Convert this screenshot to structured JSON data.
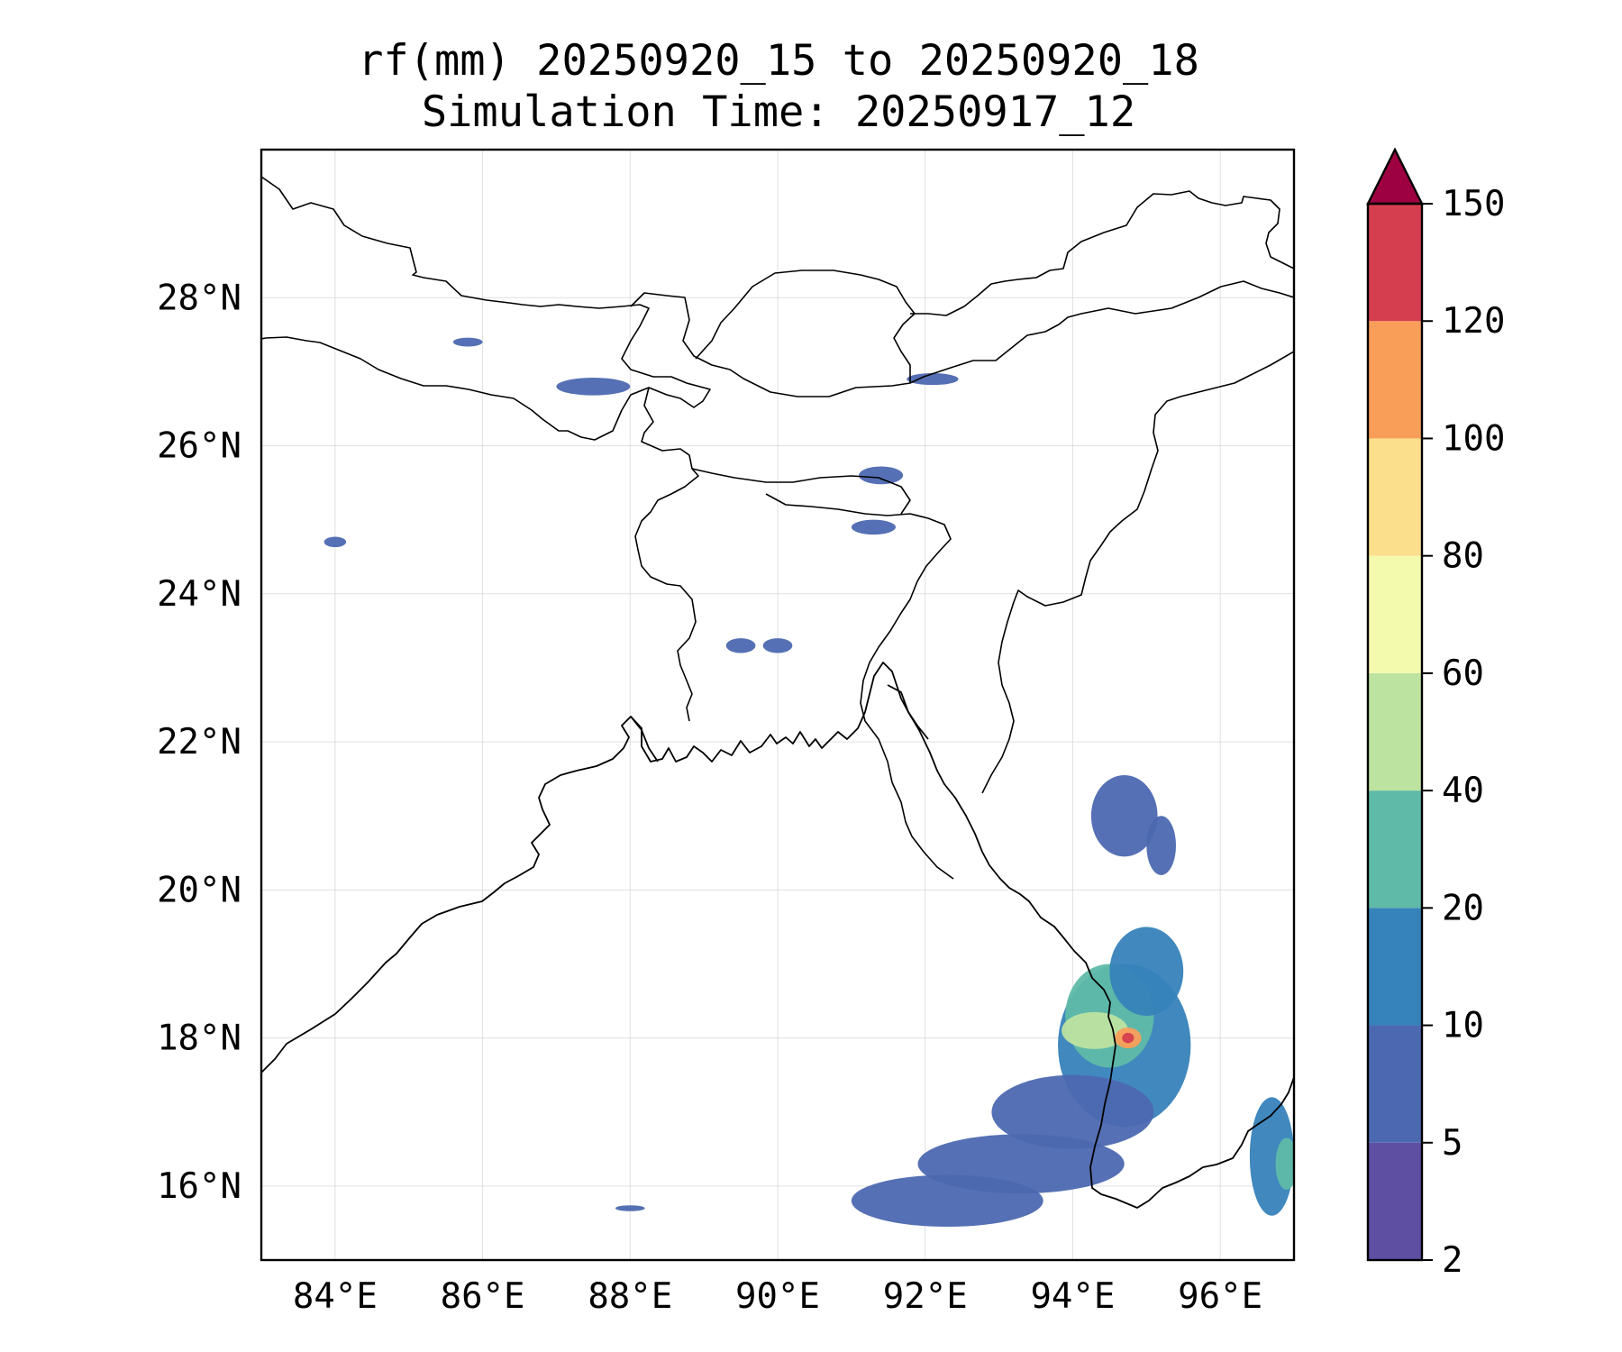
{
  "title_line1": "rf(mm) 20250920_15 to 20250920_18",
  "title_line2": "Simulation Time: 20250917_12",
  "map": {
    "lon_range": [
      83.0,
      97.0
    ],
    "lat_range": [
      15.0,
      30.0
    ],
    "lon_ticks": [
      84,
      86,
      88,
      90,
      92,
      94,
      96
    ],
    "lat_ticks": [
      16,
      18,
      20,
      22,
      24,
      26,
      28
    ],
    "lon_labels": [
      "84°E",
      "86°E",
      "88°E",
      "90°E",
      "92°E",
      "94°E",
      "96°E"
    ],
    "lat_labels": [
      "16°N",
      "18°N",
      "20°N",
      "22°N",
      "24°N",
      "26°N",
      "28°N"
    ],
    "gridlines": true
  },
  "colorbar": {
    "levels": [
      2,
      5,
      10,
      20,
      40,
      60,
      80,
      100,
      120,
      150
    ],
    "level_labels": [
      "2",
      "5",
      "10",
      "20",
      "40",
      "60",
      "80",
      "100",
      "120",
      "150"
    ],
    "colors": [
      "#5e4fa2",
      "#4c68b0",
      "#3682ba",
      "#5fbaa8",
      "#bde3a0",
      "#f3f9ad",
      "#fbdf8c",
      "#f99e59",
      "#d53e4f"
    ],
    "extend_color": "#9e0142",
    "extend": "max"
  },
  "rain_cells": [
    {
      "lon": 94.7,
      "lat": 17.9,
      "rx": 0.9,
      "ry": 1.1,
      "level": 2
    },
    {
      "lon": 94.5,
      "lat": 18.3,
      "rx": 0.6,
      "ry": 0.7,
      "level": 3
    },
    {
      "lon": 94.3,
      "lat": 18.1,
      "rx": 0.45,
      "ry": 0.25,
      "level": 4
    },
    {
      "lon": 94.75,
      "lat": 18.0,
      "rx": 0.18,
      "ry": 0.14,
      "level": 7
    },
    {
      "lon": 94.75,
      "lat": 18.0,
      "rx": 0.08,
      "ry": 0.07,
      "level": 8
    },
    {
      "lon": 95.0,
      "lat": 18.9,
      "rx": 0.5,
      "ry": 0.6,
      "level": 2
    },
    {
      "lon": 94.0,
      "lat": 17.0,
      "rx": 1.1,
      "ry": 0.5,
      "level": 1
    },
    {
      "lon": 93.3,
      "lat": 16.3,
      "rx": 1.4,
      "ry": 0.4,
      "level": 1
    },
    {
      "lon": 92.3,
      "lat": 15.8,
      "rx": 1.3,
      "ry": 0.35,
      "level": 1
    },
    {
      "lon": 94.7,
      "lat": 21.0,
      "rx": 0.45,
      "ry": 0.55,
      "level": 1
    },
    {
      "lon": 95.2,
      "lat": 20.6,
      "rx": 0.2,
      "ry": 0.4,
      "level": 1
    },
    {
      "lon": 96.7,
      "lat": 16.4,
      "rx": 0.3,
      "ry": 0.8,
      "level": 2
    },
    {
      "lon": 96.9,
      "lat": 16.3,
      "rx": 0.15,
      "ry": 0.35,
      "level": 3
    },
    {
      "lon": 87.5,
      "lat": 26.8,
      "rx": 0.5,
      "ry": 0.12,
      "level": 1
    },
    {
      "lon": 91.4,
      "lat": 25.6,
      "rx": 0.3,
      "ry": 0.12,
      "level": 1
    },
    {
      "lon": 91.3,
      "lat": 24.9,
      "rx": 0.3,
      "ry": 0.1,
      "level": 1
    },
    {
      "lon": 92.1,
      "lat": 26.9,
      "rx": 0.35,
      "ry": 0.08,
      "level": 1
    },
    {
      "lon": 84.0,
      "lat": 24.7,
      "rx": 0.15,
      "ry": 0.07,
      "level": 1
    },
    {
      "lon": 85.8,
      "lat": 27.4,
      "rx": 0.2,
      "ry": 0.06,
      "level": 1
    },
    {
      "lon": 89.5,
      "lat": 23.3,
      "rx": 0.2,
      "ry": 0.1,
      "level": 1
    },
    {
      "lon": 90.0,
      "lat": 23.3,
      "rx": 0.2,
      "ry": 0.1,
      "level": 1
    },
    {
      "lon": 88.0,
      "lat": 15.7,
      "rx": 0.2,
      "ry": 0.04,
      "level": 1
    }
  ]
}
